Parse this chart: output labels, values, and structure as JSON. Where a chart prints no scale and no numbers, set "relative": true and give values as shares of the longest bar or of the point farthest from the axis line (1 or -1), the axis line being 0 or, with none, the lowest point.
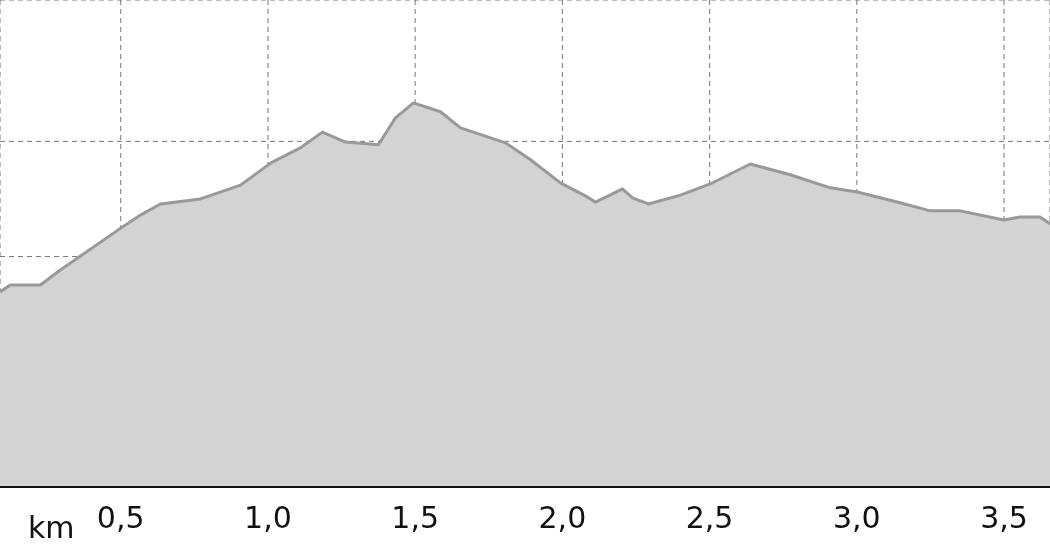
{
  "chart_data": {
    "type": "area",
    "relative": true,
    "xlabel": "km",
    "x": [
      0.09,
      0.125,
      0.227,
      0.295,
      0.5,
      0.567,
      0.635,
      0.771,
      0.907,
      1.01,
      1.11,
      1.185,
      1.263,
      1.375,
      1.433,
      1.494,
      1.586,
      1.654,
      1.807,
      1.892,
      1.993,
      2.078,
      2.112,
      2.156,
      2.204,
      2.238,
      2.292,
      2.401,
      2.502,
      2.638,
      2.774,
      2.91,
      3.001,
      3.147,
      3.249,
      3.351,
      3.5,
      3.554,
      3.622,
      3.656
    ],
    "series": [
      {
        "color": "#999999",
        "values": [
          0.508,
          0.526,
          0.526,
          0.565,
          0.674,
          0.708,
          0.737,
          0.75,
          0.786,
          0.844,
          0.883,
          0.924,
          0.898,
          0.891,
          0.961,
          1,
          0.977,
          0.935,
          0.896,
          0.852,
          0.792,
          0.758,
          0.742,
          0.758,
          0.776,
          0.753,
          0.737,
          0.76,
          0.789,
          0.841,
          0.813,
          0.779,
          0.768,
          0.74,
          0.719,
          0.719,
          0.695,
          0.703,
          0.703,
          0.685
        ]
      }
    ],
    "xlim": [
      0.09,
      3.656
    ],
    "xticks": [
      {
        "value": 0.5,
        "label": "0,5"
      },
      {
        "value": 1.0,
        "label": "1,0"
      },
      {
        "value": 1.5,
        "label": "1,5"
      },
      {
        "value": 2.0,
        "label": "2,0"
      },
      {
        "value": 2.5,
        "label": "2,5"
      },
      {
        "value": 3.0,
        "label": "3,0"
      },
      {
        "value": 3.5,
        "label": "3,5"
      }
    ],
    "grid": true,
    "marker": "none",
    "line_style": "solid"
  }
}
